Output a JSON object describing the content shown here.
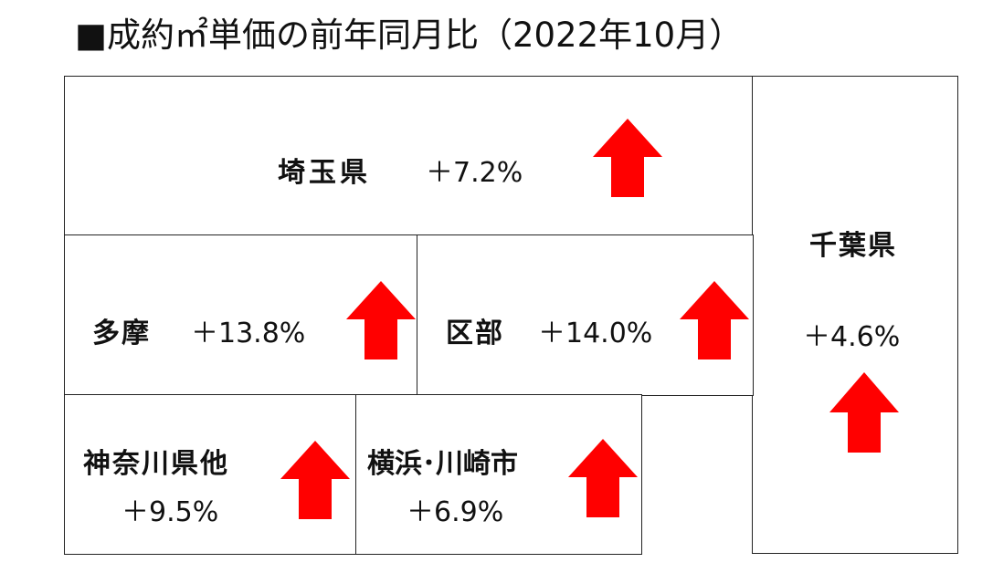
{
  "title": "■成約㎡単価の前年同月比（2022年10月）",
  "regions": {
    "saitama": {
      "name": "埼玉県",
      "change": "＋7.2%"
    },
    "tama": {
      "name": "多摩",
      "change": "＋13.8%"
    },
    "kubu": {
      "name": "区部",
      "change": "＋14.0%"
    },
    "kanagawa": {
      "name": "神奈川県他",
      "change": "＋9.5%"
    },
    "yokohama": {
      "name": "横浜･川崎市",
      "change": "＋6.9%"
    },
    "chiba": {
      "name": "千葉県",
      "change": "＋4.6%"
    }
  },
  "colors": {
    "arrow": "#ff0000",
    "border": "#222222"
  },
  "icons": {
    "up": "up-arrow-icon"
  }
}
